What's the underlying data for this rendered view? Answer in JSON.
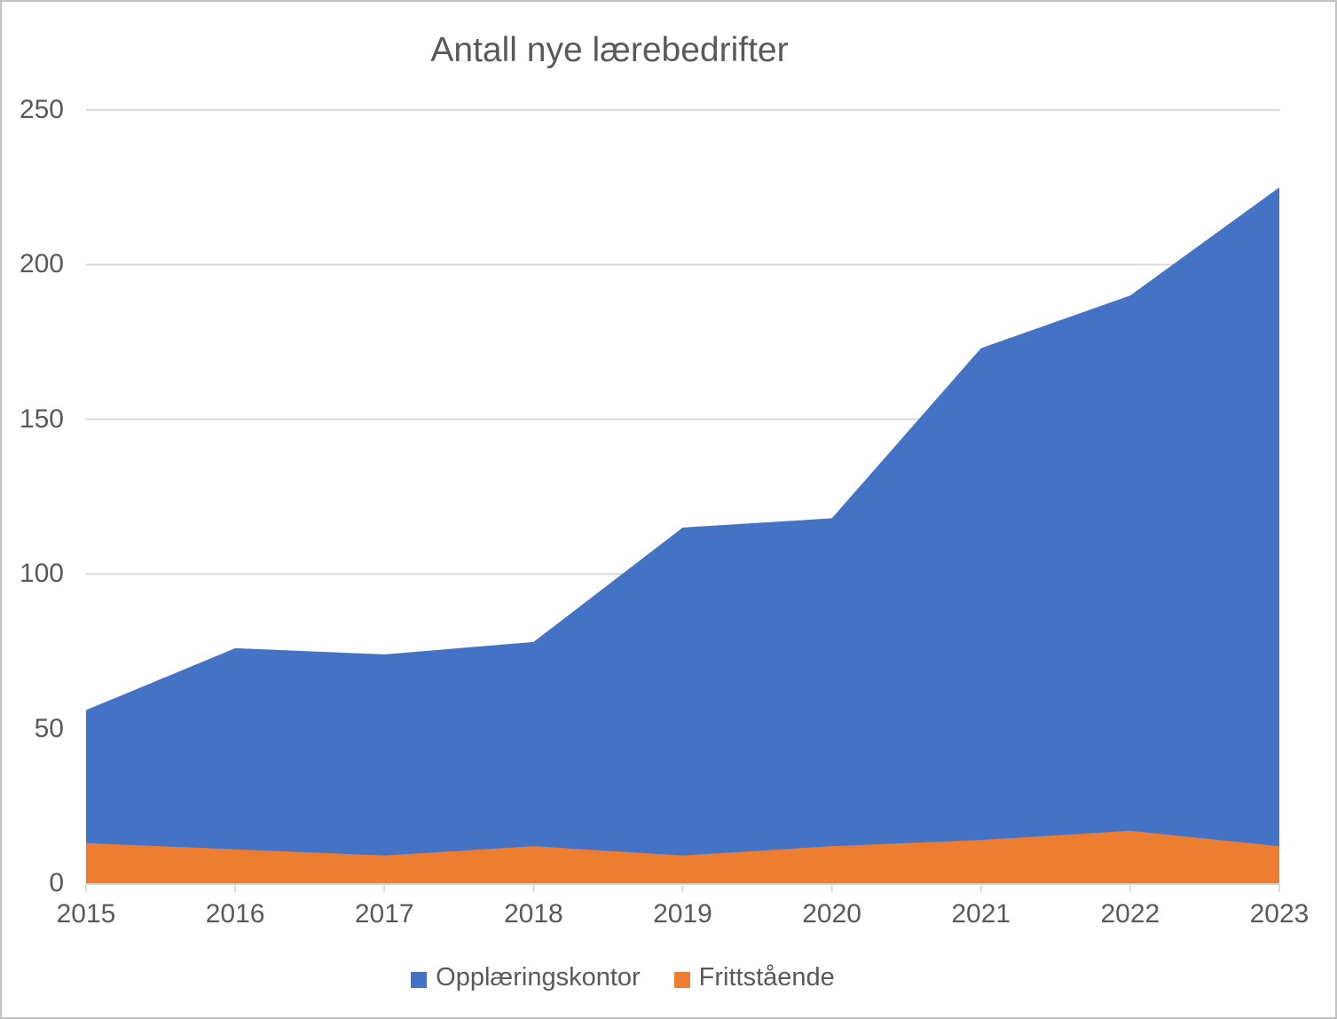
{
  "chart_data": {
    "type": "area",
    "stacked": true,
    "title": "Antall nye lærebedrifter",
    "categories": [
      "2015",
      "2016",
      "2017",
      "2018",
      "2019",
      "2020",
      "2021",
      "2022",
      "2023"
    ],
    "series": [
      {
        "name": "Opplæringskontor",
        "color": "#4472C4",
        "values": [
          43,
          65,
          65,
          66,
          106,
          106,
          159,
          173,
          213
        ]
      },
      {
        "name": "Frittstående",
        "color": "#ED7D31",
        "values": [
          13,
          11,
          9,
          12,
          9,
          12,
          14,
          17,
          12
        ]
      }
    ],
    "stacked_totals": [
      56,
      76,
      74,
      78,
      115,
      118,
      173,
      190,
      225
    ],
    "ylim": [
      0,
      250
    ],
    "y_ticks": [
      0,
      50,
      100,
      150,
      200,
      250
    ],
    "grid": "horizontal",
    "gridline_color": "#D9D9D9",
    "axis_line_color": "#D9D9D9",
    "axis_label_color": "#595959",
    "legend_position": "bottom"
  }
}
